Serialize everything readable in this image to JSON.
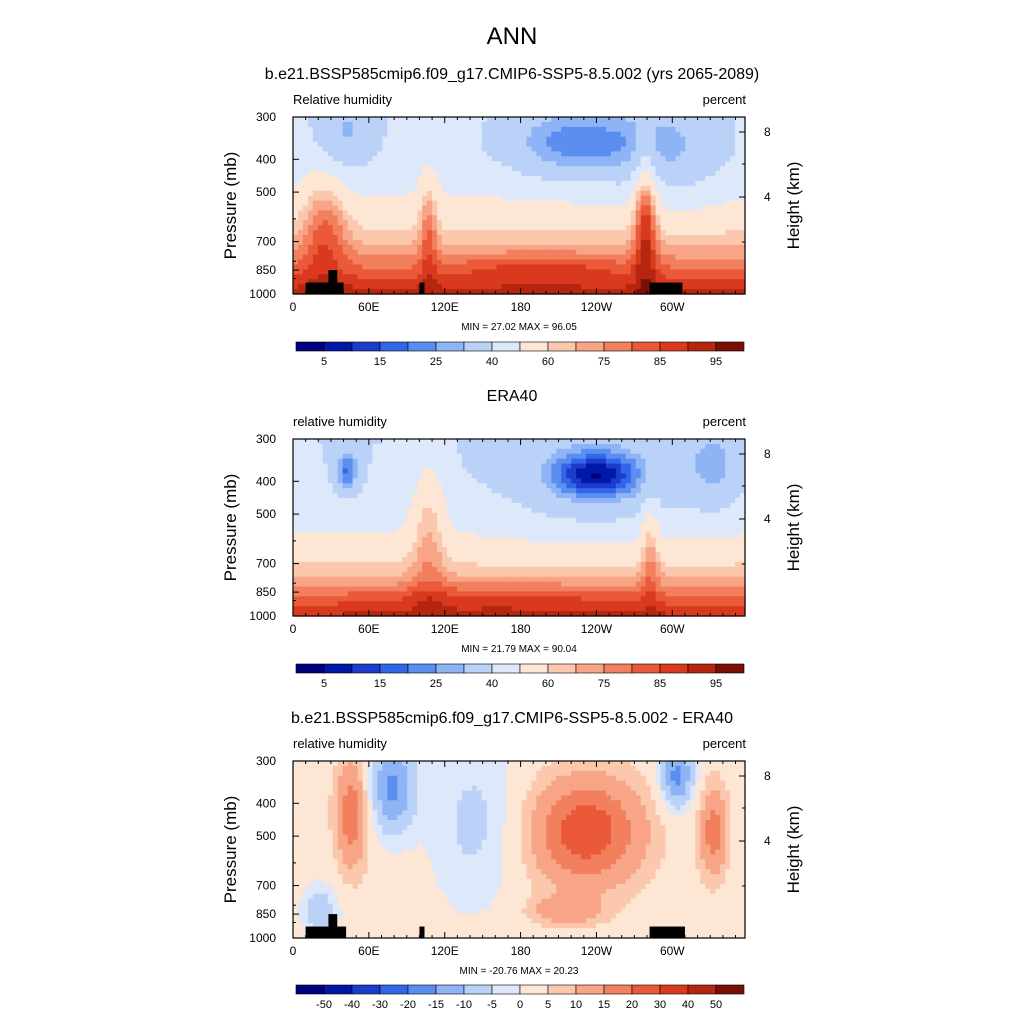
{
  "figure_title": "ANN",
  "chart_data": [
    {
      "type": "heatmap",
      "title": "b.e21.BSSP585cmip6.f09_g17.CMIP6-SSP5-8.5.002 (yrs 2065-2089)",
      "left_label": "Relative humidity",
      "right_label": "percent",
      "ylabel": "Pressure (mb)",
      "y2label": "Height (km)",
      "x_ticks": [
        "0",
        "60E",
        "120E",
        "180",
        "120W",
        "60W"
      ],
      "x_tick_values": [
        0,
        60,
        120,
        180,
        240,
        300
      ],
      "xlim": [
        0,
        357.5
      ],
      "y_ticks": [
        "300",
        "400",
        "500",
        "700",
        "850",
        "1000"
      ],
      "y_tick_values": [
        300,
        400,
        500,
        700,
        850,
        1000
      ],
      "ylim": [
        1000,
        300
      ],
      "y2_ticks": [
        "8",
        "4"
      ],
      "y2_tick_values": [
        8,
        4
      ],
      "stats": "MIN = 27.02  MAX = 96.05",
      "min": 27.02,
      "max": 96.05,
      "colorbar_labels": [
        "5",
        "15",
        "25",
        "40",
        "60",
        "75",
        "85",
        "95"
      ],
      "colorbar_colors": [
        "#00007f",
        "#0018a8",
        "#1e3ccc",
        "#3266e8",
        "#5a8ef0",
        "#8fb4f5",
        "#bbd2f8",
        "#dde8fb",
        "#fde6d4",
        "#fbc8ad",
        "#f7a586",
        "#f27f5e",
        "#ea5a38",
        "#d93a1f",
        "#b4260f",
        "#7a0f05"
      ],
      "topography": [
        {
          "lon_from": 10,
          "lon_to": 40,
          "top_mb": 925
        },
        {
          "lon_from": 28,
          "lon_to": 35,
          "top_mb": 850
        },
        {
          "lon_from": 100,
          "lon_to": 104,
          "top_mb": 925
        },
        {
          "lon_from": 282,
          "lon_to": 308,
          "top_mb": 925
        }
      ]
    },
    {
      "type": "heatmap",
      "title": "ERA40",
      "left_label": "relative humidity",
      "right_label": "percent",
      "ylabel": "Pressure (mb)",
      "y2label": "Height (km)",
      "x_ticks": [
        "0",
        "60E",
        "120E",
        "180",
        "120W",
        "60W"
      ],
      "x_tick_values": [
        0,
        60,
        120,
        180,
        240,
        300
      ],
      "xlim": [
        0,
        357.5
      ],
      "y_ticks": [
        "300",
        "400",
        "500",
        "700",
        "850",
        "1000"
      ],
      "y_tick_values": [
        300,
        400,
        500,
        700,
        850,
        1000
      ],
      "ylim": [
        1000,
        300
      ],
      "y2_ticks": [
        "8",
        "4"
      ],
      "y2_tick_values": [
        8,
        4
      ],
      "stats": "MIN = 21.79  MAX = 90.04",
      "min": 21.79,
      "max": 90.04,
      "colorbar_labels": [
        "5",
        "15",
        "25",
        "40",
        "60",
        "75",
        "85",
        "95"
      ],
      "colorbar_colors": [
        "#00007f",
        "#0018a8",
        "#1e3ccc",
        "#3266e8",
        "#5a8ef0",
        "#8fb4f5",
        "#bbd2f8",
        "#dde8fb",
        "#fde6d4",
        "#fbc8ad",
        "#f7a586",
        "#f27f5e",
        "#ea5a38",
        "#d93a1f",
        "#b4260f",
        "#7a0f05"
      ],
      "topography": []
    },
    {
      "type": "heatmap",
      "title": "b.e21.BSSP585cmip6.f09_g17.CMIP6-SSP5-8.5.002 - ERA40",
      "left_label": "relative humidity",
      "right_label": "percent",
      "ylabel": "Pressure (mb)",
      "y2label": "Height (km)",
      "x_ticks": [
        "0",
        "60E",
        "120E",
        "180",
        "120W",
        "60W"
      ],
      "x_tick_values": [
        0,
        60,
        120,
        180,
        240,
        300
      ],
      "xlim": [
        0,
        357.5
      ],
      "y_ticks": [
        "300",
        "400",
        "500",
        "700",
        "850",
        "1000"
      ],
      "y_tick_values": [
        300,
        400,
        500,
        700,
        850,
        1000
      ],
      "ylim": [
        1000,
        300
      ],
      "y2_ticks": [
        "8",
        "4"
      ],
      "y2_tick_values": [
        8,
        4
      ],
      "stats": "MIN = -20.76  MAX = 20.23",
      "min": -20.76,
      "max": 20.23,
      "colorbar_labels": [
        "-50",
        "-40",
        "-30",
        "-20",
        "-15",
        "-10",
        "-5",
        "0",
        "5",
        "10",
        "15",
        "20",
        "30",
        "40",
        "50"
      ],
      "colorbar_colors": [
        "#00007f",
        "#0018a8",
        "#1e3ccc",
        "#3266e8",
        "#5a8ef0",
        "#8fb4f5",
        "#bbd2f8",
        "#dde8fb",
        "#fde6d4",
        "#fbc8ad",
        "#f7a586",
        "#f27f5e",
        "#ea5a38",
        "#d93a1f",
        "#b4260f",
        "#7a0f05"
      ],
      "topography": [
        {
          "lon_from": 10,
          "lon_to": 42,
          "top_mb": 925
        },
        {
          "lon_from": 28,
          "lon_to": 35,
          "top_mb": 850
        },
        {
          "lon_from": 100,
          "lon_to": 104,
          "top_mb": 925
        },
        {
          "lon_from": 282,
          "lon_to": 310,
          "top_mb": 925
        }
      ]
    }
  ]
}
